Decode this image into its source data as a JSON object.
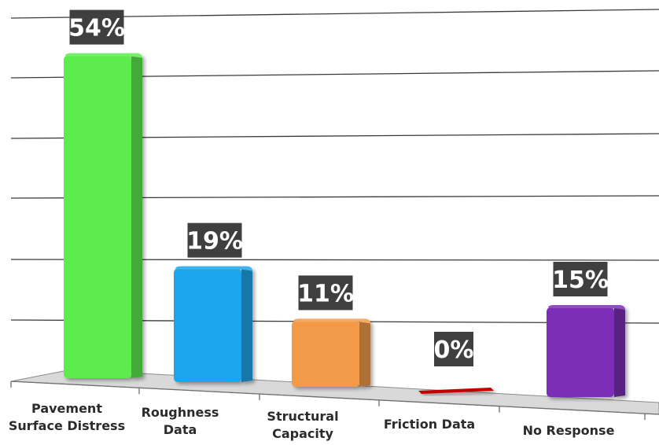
{
  "chart_data": {
    "type": "bar",
    "categories": [
      [
        "Pavement",
        "Surface Distress"
      ],
      [
        "Roughness",
        "Data"
      ],
      [
        "Structural",
        "Capacity"
      ],
      [
        "Friction Data"
      ],
      [
        "No Response"
      ]
    ],
    "values": [
      54,
      19,
      11,
      0,
      15
    ],
    "value_labels": [
      "54%",
      "19%",
      "11%",
      "0%",
      "15%"
    ],
    "colors": [
      "#5cec4c",
      "#1aa5ea",
      "#f39a48",
      "#c00000",
      "#7c2fb6"
    ],
    "title": "",
    "xlabel": "",
    "ylabel": "",
    "ylim": [
      0,
      60
    ],
    "grid": true,
    "legend": "none"
  }
}
